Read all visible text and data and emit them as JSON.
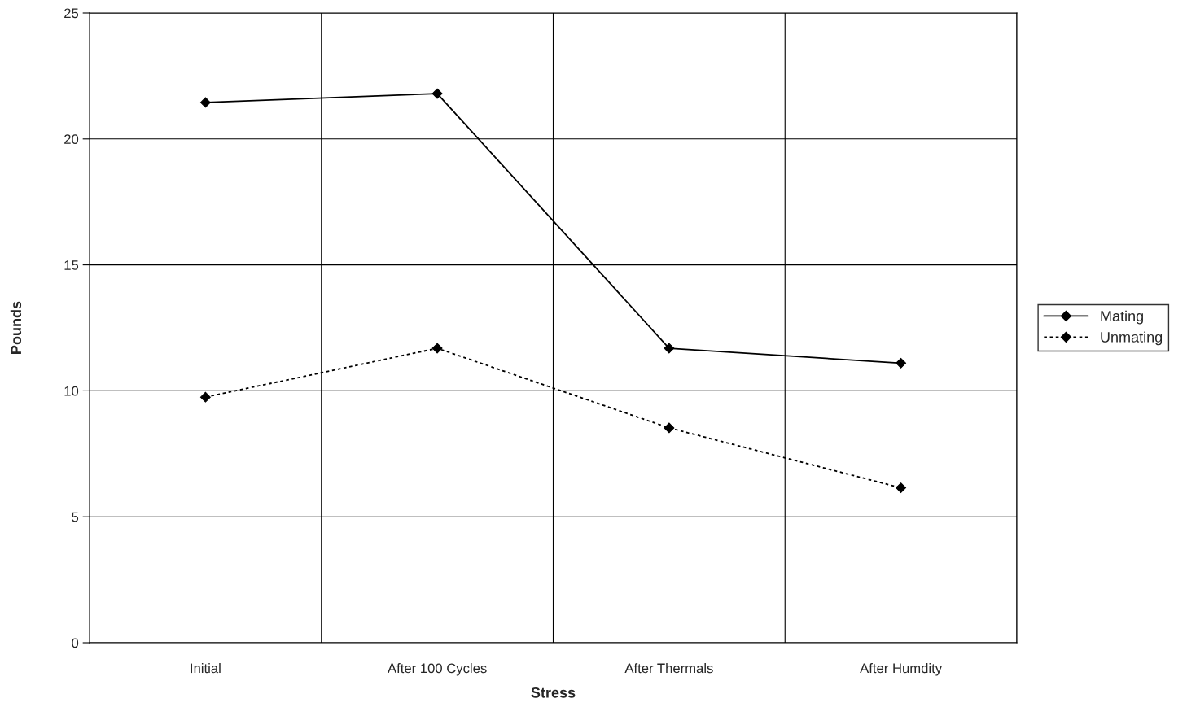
{
  "chart_data": {
    "type": "line",
    "xlabel": "Stress",
    "ylabel": "Pounds",
    "categories": [
      "Initial",
      "After 100 Cycles",
      "After Thermals",
      "After Humdity"
    ],
    "series": [
      {
        "name": "Mating",
        "color": "#000000",
        "line_style": "solid",
        "values": [
          21.45,
          21.8,
          11.69,
          11.1
        ]
      },
      {
        "name": "Unmating",
        "color": "#000000",
        "line_style": "dotted",
        "values": [
          9.75,
          11.69,
          8.53,
          6.15
        ]
      }
    ],
    "ylim": [
      0,
      25
    ],
    "yticks": [
      0,
      5,
      10,
      15,
      20,
      25
    ],
    "grid": true,
    "legend": "right",
    "marker": "diamond"
  }
}
